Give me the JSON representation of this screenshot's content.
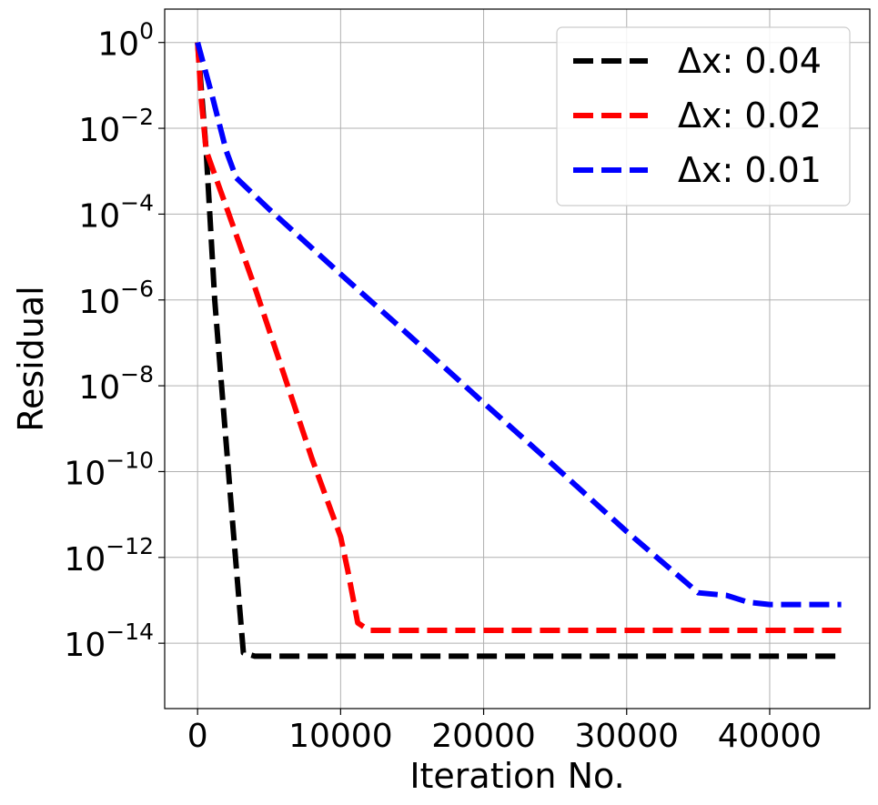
{
  "chart_data": {
    "type": "line",
    "title": "",
    "xlabel": "Iteration No.",
    "ylabel": "Residual",
    "x_ticks": [
      0,
      10000,
      20000,
      30000,
      40000
    ],
    "x_tick_labels": [
      "0",
      "10000",
      "20000",
      "30000",
      "40000"
    ],
    "y_scale": "log",
    "y_tick_exponents": [
      0,
      -2,
      -4,
      -6,
      -8,
      -10,
      -12,
      -14
    ],
    "y_tick_base": "10",
    "y_tick_labels": [
      "0",
      "−2",
      "−4",
      "−6",
      "−8",
      "−10",
      "−12",
      "−14"
    ],
    "xlim": [
      -2300,
      47000
    ],
    "ylim": [
      3e-16,
      6
    ],
    "grid": true,
    "legend_position": "top-right",
    "series": [
      {
        "name": "Δx: 0.04",
        "color": "#000000",
        "style": "dashed",
        "points": [
          [
            0,
            1
          ],
          [
            600,
            0.003
          ],
          [
            1200,
            1e-06
          ],
          [
            1800,
            3e-09
          ],
          [
            2400,
            1e-11
          ],
          [
            2900,
            1e-13
          ],
          [
            3200,
            6e-15
          ],
          [
            4000,
            5e-15
          ],
          [
            45000,
            5e-15
          ]
        ]
      },
      {
        "name": "Δx: 0.02",
        "color": "#ff0000",
        "style": "dashed",
        "points": [
          [
            0,
            1
          ],
          [
            250,
            0.05
          ],
          [
            600,
            0.003
          ],
          [
            2000,
            0.00015
          ],
          [
            4000,
            2e-06
          ],
          [
            6000,
            2e-08
          ],
          [
            8000,
            2e-10
          ],
          [
            10000,
            3e-12
          ],
          [
            10500,
            5e-13
          ],
          [
            11200,
            3e-14
          ],
          [
            12000,
            2e-14
          ],
          [
            45000,
            2e-14
          ]
        ]
      },
      {
        "name": "Δx: 0.01",
        "color": "#0000ff",
        "style": "dashed",
        "points": [
          [
            0,
            1
          ],
          [
            1000,
            0.06
          ],
          [
            2000,
            0.003
          ],
          [
            2700,
            0.0007
          ],
          [
            5000,
            0.00013
          ],
          [
            10000,
            4e-06
          ],
          [
            15000,
            1.3e-07
          ],
          [
            20000,
            4e-09
          ],
          [
            25000,
            1.3e-10
          ],
          [
            30000,
            4e-12
          ],
          [
            35000,
            1.5e-13
          ],
          [
            37000,
            1.3e-13
          ],
          [
            38500,
            9e-14
          ],
          [
            40000,
            8e-14
          ],
          [
            45000,
            8e-14
          ]
        ]
      }
    ]
  }
}
